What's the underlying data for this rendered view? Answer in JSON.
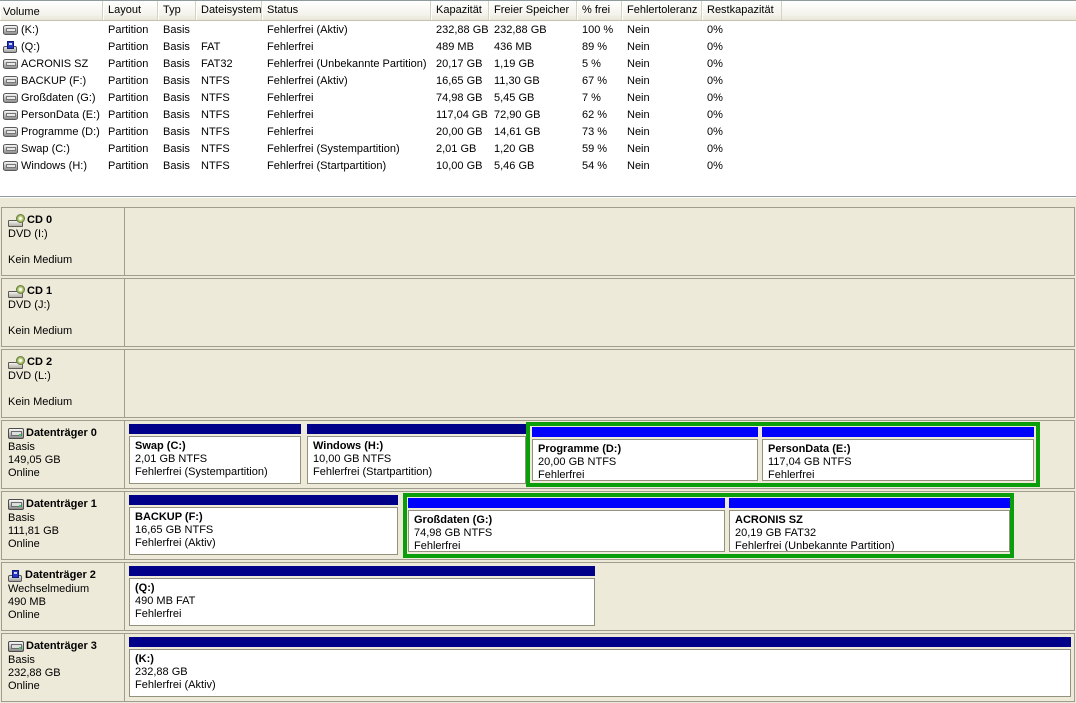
{
  "colors": {
    "primary_partition_bar": "#000089",
    "logical_drive_bar": "#0000FE",
    "extended_partition_border": "#0A9E0A",
    "panel_background": "#ECE9D8"
  },
  "volume_table": {
    "columns": {
      "volume": "Volume",
      "layout": "Layout",
      "typ": "Typ",
      "dateisystem": "Dateisystem",
      "status": "Status",
      "kapazitaet": "Kapazität",
      "freier_speicher": "Freier Speicher",
      "pct_frei": "% frei",
      "fehlertoleranz": "Fehlertoleranz",
      "restkapazitaet": "Restkapazität"
    },
    "rows": [
      {
        "icon": "partition",
        "volume": "(K:)",
        "layout": "Partition",
        "typ": "Basis",
        "fs": "",
        "status": "Fehlerfrei (Aktiv)",
        "cap": "232,88 GB",
        "free": "232,88 GB",
        "pct": "100 %",
        "ft": "Nein",
        "rest": "0%"
      },
      {
        "icon": "removable",
        "volume": "(Q:)",
        "layout": "Partition",
        "typ": "Basis",
        "fs": "FAT",
        "status": "Fehlerfrei",
        "cap": "489 MB",
        "free": "436 MB",
        "pct": "89 %",
        "ft": "Nein",
        "rest": "0%"
      },
      {
        "icon": "partition",
        "volume": "ACRONIS SZ",
        "layout": "Partition",
        "typ": "Basis",
        "fs": "FAT32",
        "status": "Fehlerfrei (Unbekannte Partition)",
        "cap": "20,17 GB",
        "free": "1,19 GB",
        "pct": "5 %",
        "ft": "Nein",
        "rest": "0%"
      },
      {
        "icon": "partition",
        "volume": "BACKUP (F:)",
        "layout": "Partition",
        "typ": "Basis",
        "fs": "NTFS",
        "status": "Fehlerfrei (Aktiv)",
        "cap": "16,65 GB",
        "free": "11,30 GB",
        "pct": "67 %",
        "ft": "Nein",
        "rest": "0%"
      },
      {
        "icon": "partition",
        "volume": "Großdaten (G:)",
        "layout": "Partition",
        "typ": "Basis",
        "fs": "NTFS",
        "status": "Fehlerfrei",
        "cap": "74,98 GB",
        "free": "5,45 GB",
        "pct": "7 %",
        "ft": "Nein",
        "rest": "0%"
      },
      {
        "icon": "partition",
        "volume": "PersonData (E:)",
        "layout": "Partition",
        "typ": "Basis",
        "fs": "NTFS",
        "status": "Fehlerfrei",
        "cap": "117,04 GB",
        "free": "72,90 GB",
        "pct": "62 %",
        "ft": "Nein",
        "rest": "0%"
      },
      {
        "icon": "partition",
        "volume": "Programme (D:)",
        "layout": "Partition",
        "typ": "Basis",
        "fs": "NTFS",
        "status": "Fehlerfrei",
        "cap": "20,00 GB",
        "free": "14,61 GB",
        "pct": "73 %",
        "ft": "Nein",
        "rest": "0%"
      },
      {
        "icon": "partition",
        "volume": "Swap (C:)",
        "layout": "Partition",
        "typ": "Basis",
        "fs": "NTFS",
        "status": "Fehlerfrei (Systempartition)",
        "cap": "2,01 GB",
        "free": "1,20 GB",
        "pct": "59 %",
        "ft": "Nein",
        "rest": "0%"
      },
      {
        "icon": "partition",
        "volume": "Windows (H:)",
        "layout": "Partition",
        "typ": "Basis",
        "fs": "NTFS",
        "status": "Fehlerfrei (Startpartition)",
        "cap": "10,00 GB",
        "free": "5,46 GB",
        "pct": "54 %",
        "ft": "Nein",
        "rest": "0%"
      }
    ]
  },
  "graphical_view": {
    "rows": [
      {
        "kind": "cd",
        "title": "CD 0",
        "device": "DVD (I:)",
        "media": "Kein Medium"
      },
      {
        "kind": "cd",
        "title": "CD 1",
        "device": "DVD (J:)",
        "media": "Kein Medium"
      },
      {
        "kind": "cd",
        "title": "CD 2",
        "device": "DVD (L:)",
        "media": "Kein Medium"
      },
      {
        "kind": "disk",
        "title": "Datenträger 0",
        "type": "Basis",
        "size": "149,05 GB",
        "state": "Online",
        "partitions": [
          {
            "name": "Swap  (C:)",
            "info": "2,01 GB NTFS",
            "status": "Fehlerfrei (Systempartition)",
            "role": "primary"
          },
          {
            "name": "Windows  (H:)",
            "info": "10,00 GB NTFS",
            "status": "Fehlerfrei (Startpartition)",
            "role": "primary"
          },
          {
            "name": "Programme  (D:)",
            "info": "20,00 GB NTFS",
            "status": "Fehlerfrei",
            "role": "logical"
          },
          {
            "name": "PersonData  (E:)",
            "info": "117,04 GB NTFS",
            "status": "Fehlerfrei",
            "role": "logical"
          }
        ]
      },
      {
        "kind": "disk",
        "title": "Datenträger 1",
        "type": "Basis",
        "size": "111,81 GB",
        "state": "Online",
        "partitions": [
          {
            "name": "BACKUP  (F:)",
            "info": "16,65 GB NTFS",
            "status": "Fehlerfrei (Aktiv)",
            "role": "primary"
          },
          {
            "name": "Großdaten  (G:)",
            "info": "74,98 GB NTFS",
            "status": "Fehlerfrei",
            "role": "logical"
          },
          {
            "name": "ACRONIS SZ",
            "info": "20,19 GB FAT32",
            "status": "Fehlerfrei (Unbekannte Partition)",
            "role": "logical"
          }
        ]
      },
      {
        "kind": "disk",
        "title": "Datenträger 2",
        "type": "Wechselmedium",
        "size": "490 MB",
        "state": "Online",
        "partitions": [
          {
            "name": "(Q:)",
            "info": "490 MB FAT",
            "status": "Fehlerfrei",
            "role": "primary"
          }
        ]
      },
      {
        "kind": "disk",
        "title": "Datenträger 3",
        "type": "Basis",
        "size": "232,88 GB",
        "state": "Online",
        "partitions": [
          {
            "name": "(K:)",
            "info": "232,88 GB",
            "status": "Fehlerfrei (Aktiv)",
            "role": "primary"
          }
        ]
      }
    ]
  }
}
